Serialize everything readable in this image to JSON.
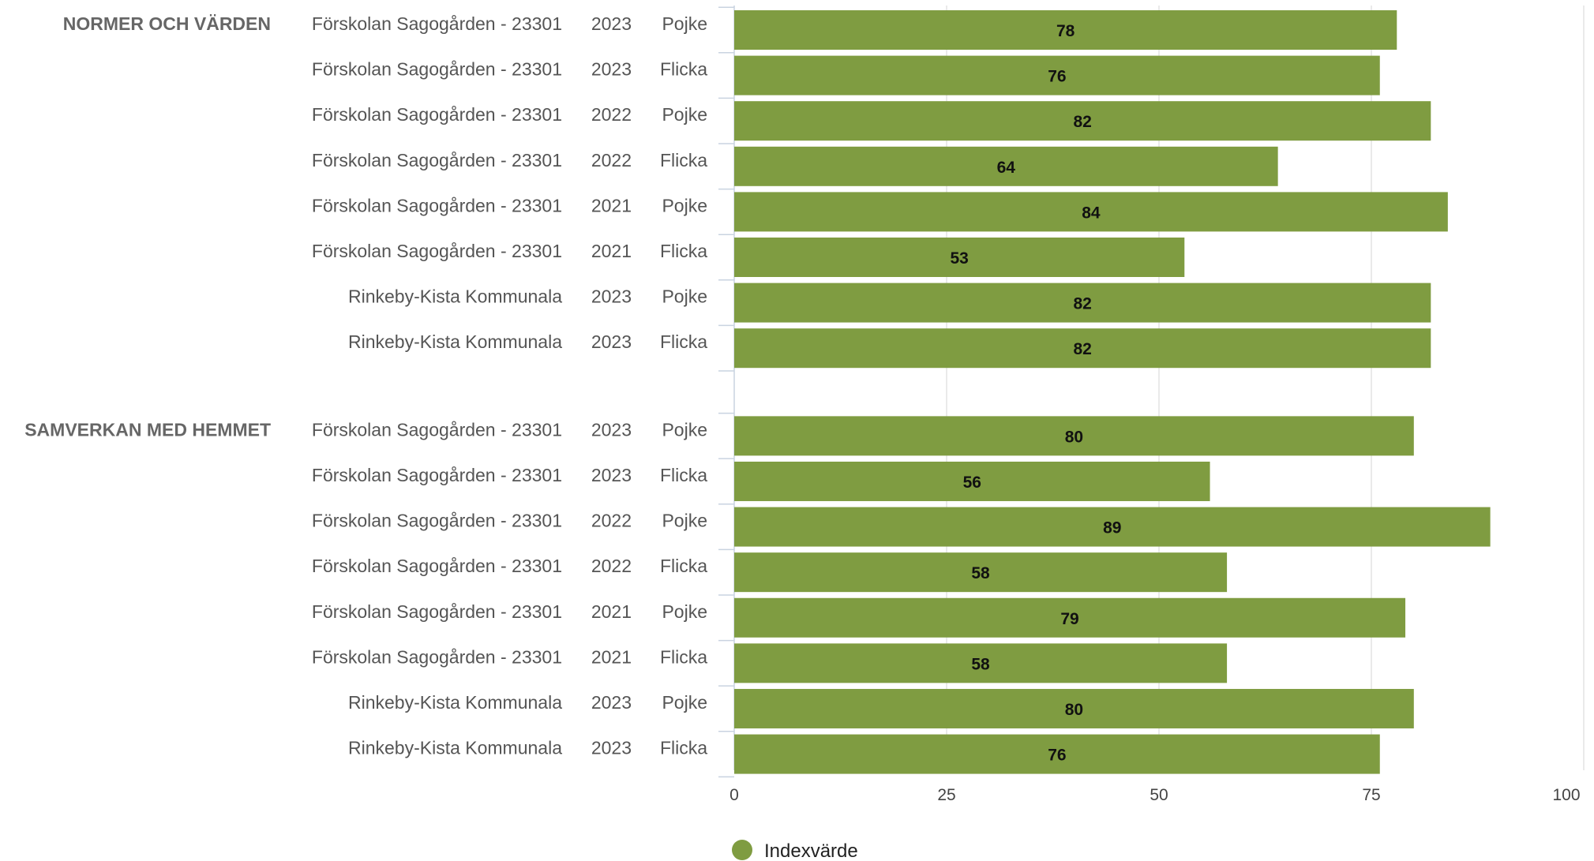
{
  "chart_data": {
    "type": "bar",
    "orientation": "horizontal",
    "xlim": [
      0,
      100
    ],
    "x_ticks": [
      0,
      25,
      50,
      75,
      100
    ],
    "grid": true,
    "legend_position": "bottom",
    "bar_color": "#7f9c41",
    "series": [
      {
        "name": "Indexvärde",
        "color": "#7f9c41"
      }
    ],
    "groups": [
      {
        "name": "NORMER OCH VÄRDEN",
        "rows": [
          {
            "unit": "Förskolan Sagogården - 23301",
            "year": "2023",
            "gender": "Pojke",
            "value": 78
          },
          {
            "unit": "Förskolan Sagogården - 23301",
            "year": "2023",
            "gender": "Flicka",
            "value": 76
          },
          {
            "unit": "Förskolan Sagogården - 23301",
            "year": "2022",
            "gender": "Pojke",
            "value": 82
          },
          {
            "unit": "Förskolan Sagogården - 23301",
            "year": "2022",
            "gender": "Flicka",
            "value": 64
          },
          {
            "unit": "Förskolan Sagogården - 23301",
            "year": "2021",
            "gender": "Pojke",
            "value": 84
          },
          {
            "unit": "Förskolan Sagogården - 23301",
            "year": "2021",
            "gender": "Flicka",
            "value": 53
          },
          {
            "unit": "Rinkeby-Kista Kommunala",
            "year": "2023",
            "gender": "Pojke",
            "value": 82
          },
          {
            "unit": "Rinkeby-Kista Kommunala",
            "year": "2023",
            "gender": "Flicka",
            "value": 82
          }
        ]
      },
      {
        "name": "SAMVERKAN MED HEMMET",
        "rows": [
          {
            "unit": "Förskolan Sagogården - 23301",
            "year": "2023",
            "gender": "Pojke",
            "value": 80
          },
          {
            "unit": "Förskolan Sagogården - 23301",
            "year": "2023",
            "gender": "Flicka",
            "value": 56
          },
          {
            "unit": "Förskolan Sagogården - 23301",
            "year": "2022",
            "gender": "Pojke",
            "value": 89
          },
          {
            "unit": "Förskolan Sagogården - 23301",
            "year": "2022",
            "gender": "Flicka",
            "value": 58
          },
          {
            "unit": "Förskolan Sagogården - 23301",
            "year": "2021",
            "gender": "Pojke",
            "value": 79
          },
          {
            "unit": "Förskolan Sagogården - 23301",
            "year": "2021",
            "gender": "Flicka",
            "value": 58
          },
          {
            "unit": "Rinkeby-Kista Kommunala",
            "year": "2023",
            "gender": "Pojke",
            "value": 80
          },
          {
            "unit": "Rinkeby-Kista Kommunala",
            "year": "2023",
            "gender": "Flicka",
            "value": 76
          }
        ]
      }
    ]
  }
}
